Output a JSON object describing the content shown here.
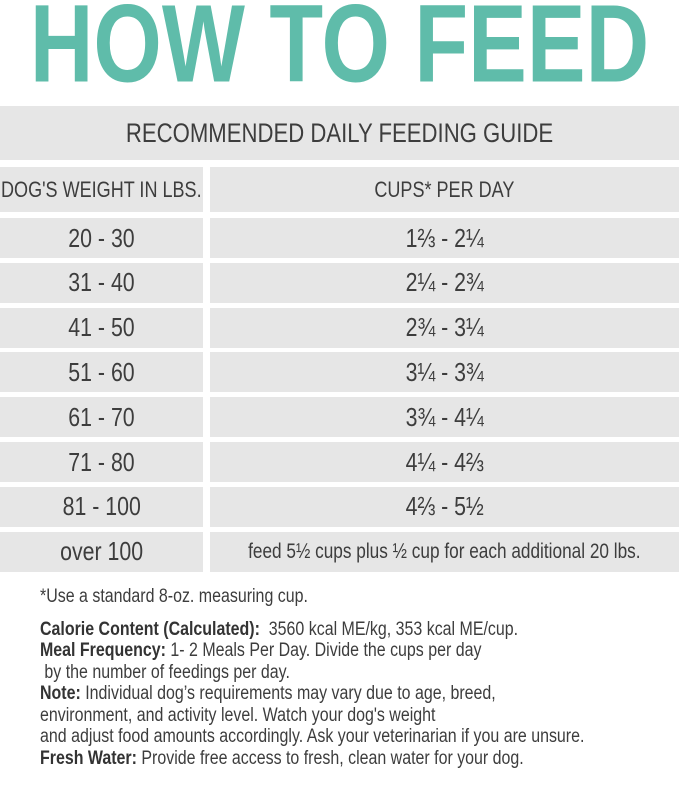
{
  "title": "HOW TO FEED",
  "colors": {
    "title": "#5fbcaa",
    "cell_bg": "#e6e6e6",
    "text": "#3d3d3d"
  },
  "table": {
    "heading": "RECOMMENDED DAILY FEEDING GUIDE",
    "columns": [
      "DOG'S WEIGHT IN LBS.",
      "CUPS* PER DAY"
    ],
    "rows": [
      {
        "weight": "20 - 30",
        "cups": "1⅔ - 2¼"
      },
      {
        "weight": "31 - 40",
        "cups": "2¼ - 2¾"
      },
      {
        "weight": "41 - 50",
        "cups": "2¾ - 3¼"
      },
      {
        "weight": "51 - 60",
        "cups": "3¼ - 3¾"
      },
      {
        "weight": "61 - 70",
        "cups": "3¾ - 4¼"
      },
      {
        "weight": "71 - 80",
        "cups": "4¼ - 4⅔"
      },
      {
        "weight": "81 - 100",
        "cups": "4⅔ - 5½"
      },
      {
        "weight": "over 100",
        "cups": "feed 5½ cups plus ½ cup for each additional 20 lbs."
      }
    ]
  },
  "notes": {
    "footnote": "*Use a standard 8-oz. measuring cup.",
    "calorie_label": "Calorie Content (Calculated):",
    "calorie_text": "  3560 kcal ME/kg, 353 kcal ME/cup.",
    "meal_label": "Meal Frequency:",
    "meal_text": " 1- 2 Meals Per Day. Divide the cups per day",
    "meal_text2": " by the number of feedings per day.",
    "note_label": "Note:",
    "note_text": " Individual dog’s requirements may vary due to age, breed,",
    "note_text2": "environment, and activity level. Watch your dog's weight",
    "note_text3": "and adjust food amounts accordingly. Ask your veterinarian if you are unsure.",
    "water_label": "Fresh Water:",
    "water_text": " Provide free access to fresh, clean water for your dog."
  }
}
